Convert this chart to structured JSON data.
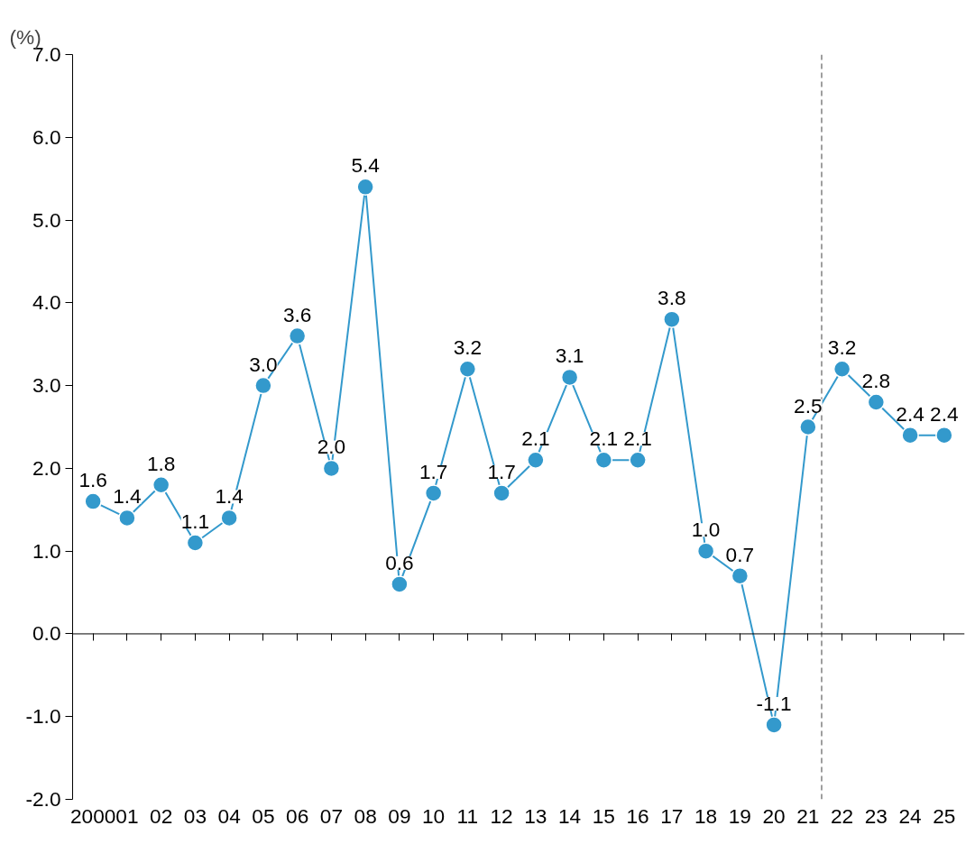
{
  "chart_data": {
    "type": "line",
    "ylabel": "(%)",
    "x": [
      2000,
      2001,
      2002,
      2003,
      2004,
      2005,
      2006,
      2007,
      2008,
      2009,
      2010,
      2011,
      2012,
      2013,
      2014,
      2015,
      2016,
      2017,
      2018,
      2019,
      2020,
      2021,
      2022,
      2023,
      2024,
      2025
    ],
    "values": [
      1.6,
      1.4,
      1.8,
      1.1,
      1.4,
      3.0,
      3.6,
      2.0,
      5.4,
      0.6,
      1.7,
      3.2,
      1.7,
      2.1,
      3.1,
      2.1,
      2.1,
      3.8,
      1.0,
      0.7,
      -1.1,
      2.5,
      3.2,
      2.8,
      2.4,
      2.4
    ],
    "color": "#3399cc",
    "marker": "circle",
    "value_labels": [
      "1.6",
      "1.4",
      "1.8",
      "1.1",
      "1.4",
      "3.0",
      "3.6",
      "2.0",
      "5.4",
      "0.6",
      "1.7",
      "3.2",
      "1.7",
      "2.1",
      "3.1",
      "2.1",
      "2.1",
      "3.8",
      "1.0",
      "0.7",
      "-1.1",
      "2.5",
      "3.2",
      "2.8",
      "2.4",
      "2.4"
    ],
    "xlim": [
      2000,
      2025
    ],
    "xticks": [
      {
        "value": 2000,
        "label": "2000"
      },
      {
        "value": 2001,
        "label": "01"
      },
      {
        "value": 2002,
        "label": "02"
      },
      {
        "value": 2003,
        "label": "03"
      },
      {
        "value": 2004,
        "label": "04"
      },
      {
        "value": 2005,
        "label": "05"
      },
      {
        "value": 2006,
        "label": "06"
      },
      {
        "value": 2007,
        "label": "07"
      },
      {
        "value": 2008,
        "label": "08"
      },
      {
        "value": 2009,
        "label": "09"
      },
      {
        "value": 2010,
        "label": "10"
      },
      {
        "value": 2011,
        "label": "11"
      },
      {
        "value": 2012,
        "label": "12"
      },
      {
        "value": 2013,
        "label": "13"
      },
      {
        "value": 2014,
        "label": "14"
      },
      {
        "value": 2015,
        "label": "15"
      },
      {
        "value": 2016,
        "label": "16"
      },
      {
        "value": 2017,
        "label": "17"
      },
      {
        "value": 2018,
        "label": "18"
      },
      {
        "value": 2019,
        "label": "19"
      },
      {
        "value": 2020,
        "label": "20"
      },
      {
        "value": 2021,
        "label": "21"
      },
      {
        "value": 2022,
        "label": "22"
      },
      {
        "value": 2023,
        "label": "23"
      },
      {
        "value": 2024,
        "label": "24"
      },
      {
        "value": 2025,
        "label": "25"
      }
    ],
    "ylim": [
      -2,
      7
    ],
    "yticks": [
      {
        "value": -2,
        "label": "-2.0"
      },
      {
        "value": -1,
        "label": "-1.0"
      },
      {
        "value": 0,
        "label": "0.0"
      },
      {
        "value": 1,
        "label": "1.0"
      },
      {
        "value": 2,
        "label": "2.0"
      },
      {
        "value": 3,
        "label": "3.0"
      },
      {
        "value": 4,
        "label": "4.0"
      },
      {
        "value": 5,
        "label": "5.0"
      },
      {
        "value": 6,
        "label": "6.0"
      },
      {
        "value": 7,
        "label": "7.0"
      }
    ],
    "ref_lines": [
      {
        "axis": "x",
        "value": 2021.4,
        "label": null,
        "color": "#808080",
        "line_style": "dashed"
      },
      {
        "axis": "y",
        "value": 0,
        "label": null,
        "color": "#000000",
        "line_style": "solid"
      }
    ],
    "grid": false
  }
}
